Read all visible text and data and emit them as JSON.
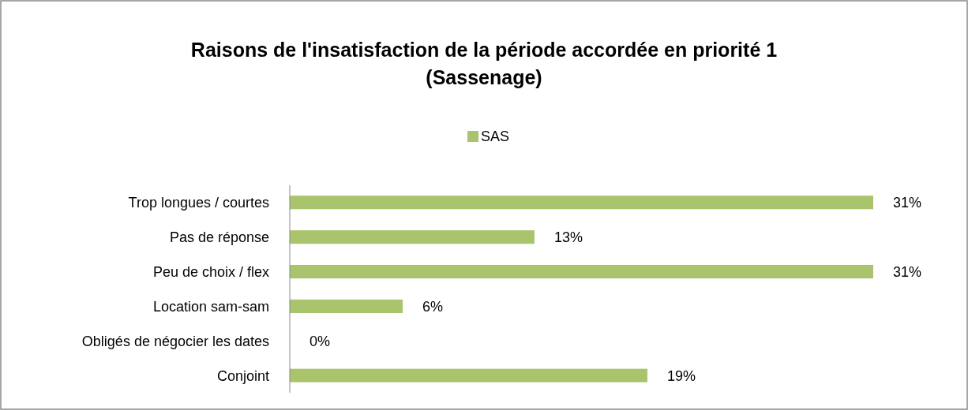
{
  "chart_data": {
    "type": "bar",
    "orientation": "horizontal",
    "title": "Raisons de l'insatisfaction de la période accordée en priorité 1\n(Sassenage)",
    "categories": [
      "Trop longues / courtes",
      "Pas de réponse",
      "Peu de choix / flex",
      "Location sam-sam",
      "Obligés de négocier les dates",
      "Conjoint"
    ],
    "series": [
      {
        "name": "SAS",
        "color": "#a9c46c",
        "values": [
          31,
          13,
          31,
          6,
          0,
          19
        ],
        "value_labels": [
          "31%",
          "13%",
          "31%",
          "6%",
          "0%",
          "19%"
        ]
      }
    ],
    "legend": "top",
    "grid": false
  }
}
